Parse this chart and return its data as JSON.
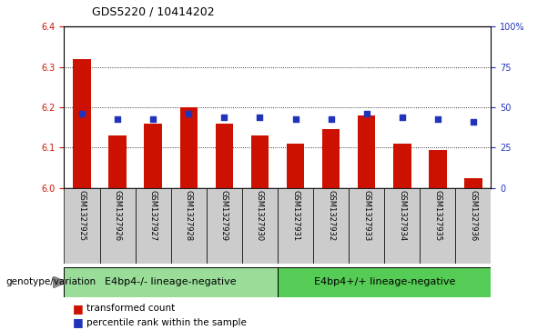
{
  "title": "GDS5220 / 10414202",
  "samples": [
    "GSM1327925",
    "GSM1327926",
    "GSM1327927",
    "GSM1327928",
    "GSM1327929",
    "GSM1327930",
    "GSM1327931",
    "GSM1327932",
    "GSM1327933",
    "GSM1327934",
    "GSM1327935",
    "GSM1327936"
  ],
  "bar_values": [
    6.32,
    6.13,
    6.16,
    6.2,
    6.16,
    6.13,
    6.11,
    6.145,
    6.18,
    6.11,
    6.095,
    6.025
  ],
  "bar_base": 6.0,
  "blue_dot_values": [
    6.185,
    6.17,
    6.17,
    6.185,
    6.175,
    6.175,
    6.17,
    6.17,
    6.185,
    6.175,
    6.17,
    6.165
  ],
  "ylim": [
    6.0,
    6.4
  ],
  "yticks_left": [
    6.0,
    6.1,
    6.2,
    6.3,
    6.4
  ],
  "yticks_right": [
    0,
    25,
    50,
    75,
    100
  ],
  "bar_color": "#cc1100",
  "dot_color": "#2233bb",
  "group1_label": "E4bp4-/- lineage-negative",
  "group2_label": "E4bp4+/+ lineage-negative",
  "group1_color": "#99dd99",
  "group2_color": "#55cc55",
  "group1_samples": 6,
  "group2_samples": 6,
  "genotype_label": "genotype/variation",
  "legend_bar_label": "transformed count",
  "legend_dot_label": "percentile rank within the sample",
  "xticklabel_bg": "#cccccc",
  "title_fontsize": 9,
  "tick_fontsize": 7,
  "label_fontsize": 7.5,
  "group_fontsize": 8
}
